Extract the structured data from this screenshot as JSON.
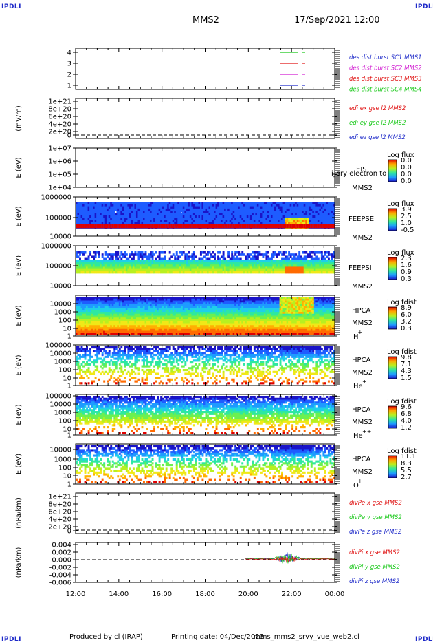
{
  "header": {
    "corner_tl": "IPDLI",
    "corner_tr": "IPDLI",
    "corner_bl": "IPDLI",
    "corner_br": "IPDLI",
    "spacecraft": "MMS2",
    "datetime": "17/Sep/2021 12:00"
  },
  "footer": {
    "produced_by": "Produced by cl (IRAP)",
    "printing_date": "Printing date: 04/Dec/2023",
    "filename": "mms_mms2_srvy_vue_web2.cl"
  },
  "time_axis": {
    "ticks": [
      "12:00",
      "14:00",
      "16:00",
      "18:00",
      "20:00",
      "22:00",
      "00:00"
    ]
  },
  "colors": {
    "blue": "#1f2bc9",
    "magenta": "#d21fd2",
    "red": "#e01414",
    "green": "#18c818"
  },
  "chart_data": [
    {
      "type": "line",
      "panel": "burst",
      "yticks": [
        "4",
        "3",
        "2",
        "1"
      ],
      "ylim": [
        0.5,
        4.5
      ],
      "legend": [
        {
          "name": "des dist burst SC1 MMS1",
          "color": "#1f2bc9"
        },
        {
          "name": "des dist burst SC2 MMS2",
          "color": "#d21fd2"
        },
        {
          "name": "des dist burst SC3 MMS3",
          "color": "#e01414"
        },
        {
          "name": "des dist burst SC4 MMS4",
          "color": "#18c818"
        }
      ]
    },
    {
      "type": "line",
      "panel": "edi",
      "ylabel": "(mV/m)",
      "yticks": [
        "1e+21",
        "8e+20",
        "6e+20",
        "4e+20",
        "2e+20",
        "0"
      ],
      "ylim": [
        0,
        1e+21
      ],
      "legend": [
        {
          "name": "edi ex gse l2 MMS2",
          "color": "#e01414"
        },
        {
          "name": "edi ey gse l2 MMS2",
          "color": "#18c818"
        },
        {
          "name": "edi ez gse l2 MMS2",
          "color": "#1f2bc9"
        }
      ]
    },
    {
      "type": "heatmap",
      "panel": "eis",
      "ylabel": "E (eV)",
      "yticks": [
        "1e+07",
        "1e+06",
        "1e+05",
        "1e+04"
      ],
      "labels": [
        "EIS",
        "MMS2"
      ],
      "overlay_text": "i_sry electron to",
      "colorbar": {
        "title": "Log flux",
        "ticks": [
          "0.0",
          "0.0",
          "0.0",
          "0.0"
        ]
      }
    },
    {
      "type": "heatmap",
      "panel": "feeps_e",
      "ylabel": "E (eV)",
      "yticks": [
        "1000000",
        "100000",
        "10000"
      ],
      "labels": [
        "FEEPSE",
        "MMS2"
      ],
      "colorbar": {
        "title": "Log flux",
        "ticks": [
          "3.9",
          "2.5",
          "1.0",
          "-0.5"
        ]
      }
    },
    {
      "type": "heatmap",
      "panel": "feeps_i",
      "ylabel": "E (eV)",
      "yticks": [
        "1000000",
        "100000",
        "10000"
      ],
      "labels": [
        "FEEPSI",
        "MMS2"
      ],
      "colorbar": {
        "title": "Log flux",
        "ticks": [
          "2.3",
          "1.6",
          "0.9",
          "0.3"
        ]
      }
    },
    {
      "type": "heatmap",
      "panel": "hpca_h",
      "ylabel": "E (eV)",
      "yticks": [
        "10000",
        "1000",
        "100",
        "10",
        "1"
      ],
      "labels": [
        "HPCA",
        "MMS2",
        "H",
        "+"
      ],
      "colorbar": {
        "title": "Log fdist",
        "ticks": [
          "8.9",
          "6.0",
          "3.2",
          "0.3"
        ]
      }
    },
    {
      "type": "heatmap",
      "panel": "hpca_he",
      "ylabel": "E (eV)",
      "yticks": [
        "100000",
        "10000",
        "1000",
        "100",
        "10",
        "1"
      ],
      "labels": [
        "HPCA",
        "MMS2",
        "He",
        "+"
      ],
      "colorbar": {
        "title": "Log fdist",
        "ticks": [
          "9.8",
          "7.1",
          "4.3",
          "1.5"
        ]
      }
    },
    {
      "type": "heatmap",
      "panel": "hpca_hepp",
      "ylabel": "E (eV)",
      "yticks": [
        "100000",
        "10000",
        "1000",
        "100",
        "10",
        "1"
      ],
      "labels": [
        "HPCA",
        "MMS2",
        "He",
        "++"
      ],
      "colorbar": {
        "title": "Log fdist",
        "ticks": [
          "9.6",
          "6.8",
          "4.0",
          "1.2"
        ]
      }
    },
    {
      "type": "heatmap",
      "panel": "hpca_o",
      "ylabel": "E (eV)",
      "yticks": [
        "10000",
        "1000",
        "100",
        "10",
        "1"
      ],
      "labels": [
        "HPCA",
        "MMS2",
        "O",
        "+"
      ],
      "colorbar": {
        "title": "Log fdist",
        "ticks": [
          "11.1",
          "8.3",
          "5.5",
          "2.7"
        ]
      }
    },
    {
      "type": "line",
      "panel": "divpe",
      "ylabel": "(nPa/km)",
      "yticks": [
        "1e+21",
        "8e+20",
        "6e+20",
        "4e+20",
        "2e+20",
        "0"
      ],
      "ylim": [
        0,
        1e+21
      ],
      "legend": [
        {
          "name": "divPe x gse MMS2",
          "color": "#e01414"
        },
        {
          "name": "divPe y gse MMS2",
          "color": "#18c818"
        },
        {
          "name": "divPe z gse MMS2",
          "color": "#1f2bc9"
        }
      ]
    },
    {
      "type": "line",
      "panel": "divpi",
      "ylabel": "(nPa/km)",
      "yticks": [
        "0.004",
        "0.002",
        "0.000",
        "-0.002",
        "-0.004",
        "-0.006"
      ],
      "ylim": [
        -0.0065,
        0.0042
      ],
      "legend": [
        {
          "name": "divPi x gse MMS2",
          "color": "#e01414"
        },
        {
          "name": "divPi y gse MMS2",
          "color": "#18c818"
        },
        {
          "name": "divPi z gse MMS2",
          "color": "#1f2bc9"
        }
      ]
    }
  ]
}
